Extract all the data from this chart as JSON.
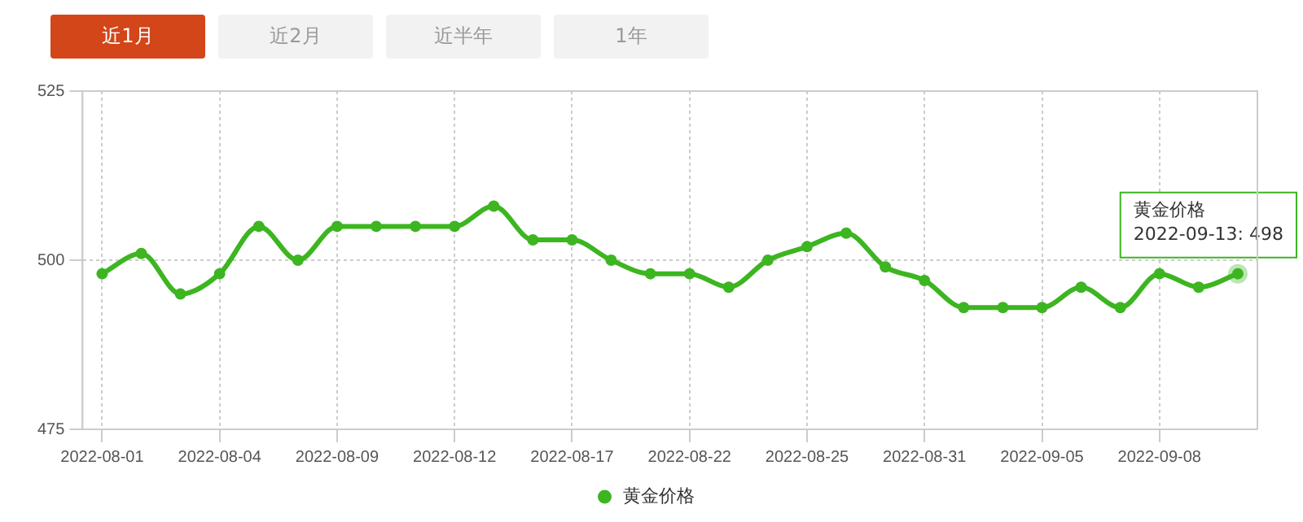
{
  "chart_data": {
    "type": "line",
    "categories": [
      "2022-08-01",
      null,
      null,
      "2022-08-04",
      null,
      null,
      "2022-08-09",
      null,
      null,
      "2022-08-12",
      null,
      null,
      "2022-08-17",
      null,
      null,
      "2022-08-22",
      null,
      null,
      "2022-08-25",
      null,
      null,
      "2022-08-31",
      null,
      null,
      "2022-09-05",
      null,
      null,
      "2022-09-08",
      null,
      null
    ],
    "series": [
      {
        "name": "黄金价格",
        "color": "#3cb521",
        "values": [
          498,
          501,
          495,
          498,
          505,
          500,
          505,
          505,
          505,
          505,
          508,
          503,
          503,
          500,
          498,
          498,
          496,
          500,
          502,
          504,
          499,
          497,
          493,
          493,
          493,
          496,
          493,
          498,
          496,
          498
        ]
      }
    ],
    "ylim": [
      475,
      525
    ],
    "yticks": [
      475,
      500,
      525
    ],
    "grid": true,
    "legend": "bottom",
    "marker": "circle",
    "line_style": "solid",
    "annotations": [
      "近1月",
      "近2月",
      "近半年",
      "1年",
      "黄金价格\n2022-09-13: 498"
    ]
  }
}
